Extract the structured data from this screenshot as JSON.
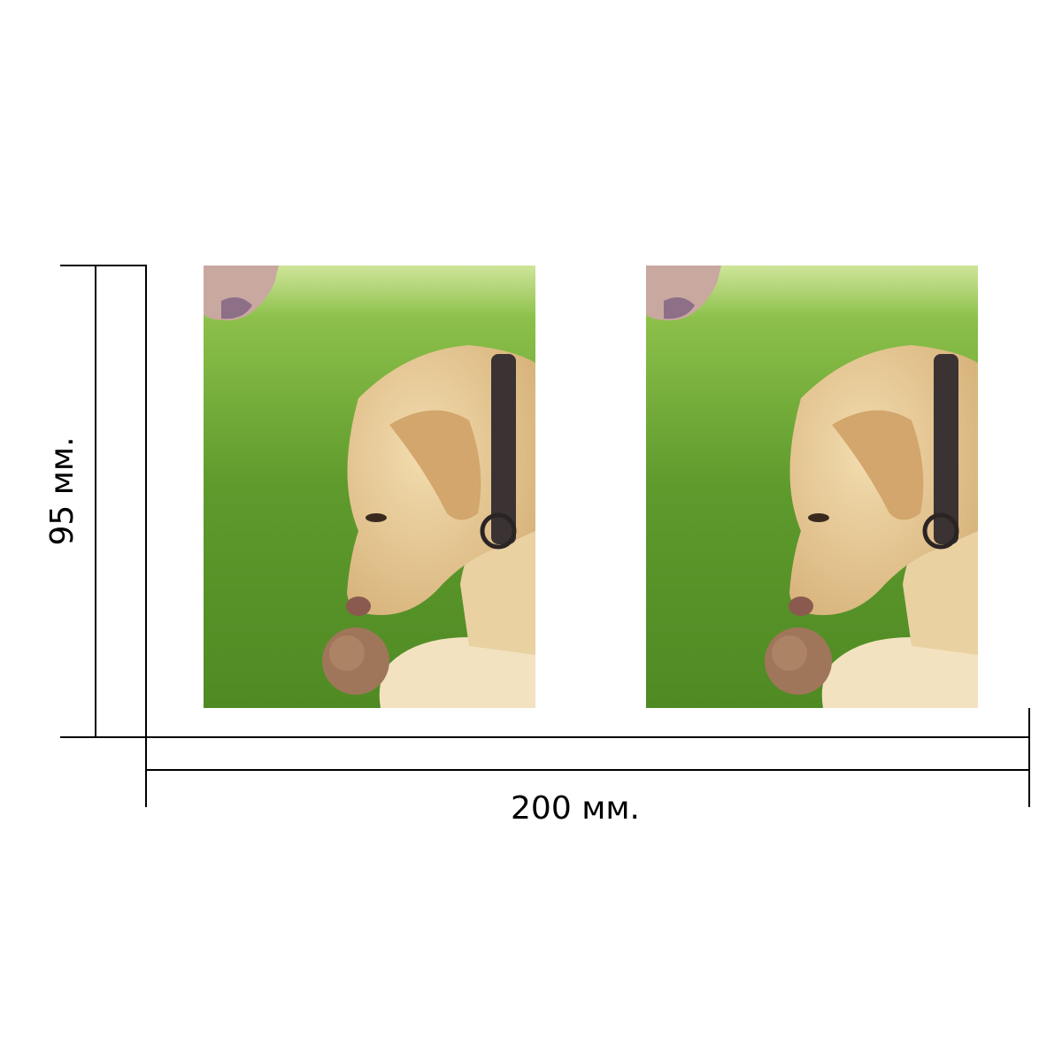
{
  "dimensions": {
    "height": "95 мм.",
    "width": "200 мм."
  }
}
